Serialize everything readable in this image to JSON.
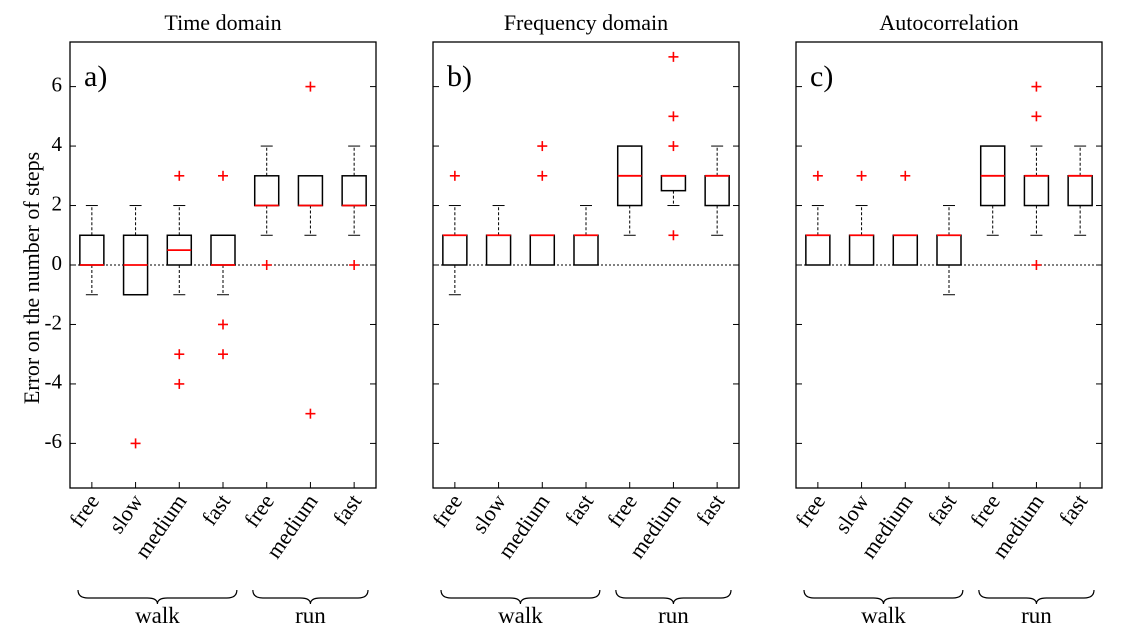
{
  "ylabel": "Error on the number of steps",
  "yticks": [
    -6,
    -4,
    -2,
    0,
    2,
    4,
    6
  ],
  "ylim": [
    -7.5,
    7.5
  ],
  "groups": [
    {
      "label": "walk",
      "categories": [
        0,
        1,
        2,
        3
      ]
    },
    {
      "label": "run",
      "categories": [
        4,
        5,
        6
      ]
    }
  ],
  "colors": {
    "median": "#ff0000",
    "outlier": "#ff0000",
    "box": "#000000",
    "zero_line": "#000000"
  },
  "chart_data": [
    {
      "type": "box",
      "title": "Time domain",
      "panel_label": "a)",
      "categories": [
        "free",
        "slow",
        "medium",
        "fast",
        "free",
        "medium",
        "fast"
      ],
      "boxes": [
        {
          "q1": 0,
          "median": 0,
          "q3": 1,
          "whisker_low": -1,
          "whisker_high": 2,
          "outliers": []
        },
        {
          "q1": -1,
          "median": 0,
          "q3": 1,
          "whisker_low": -1,
          "whisker_high": 2,
          "outliers": [
            -6
          ]
        },
        {
          "q1": 0,
          "median": 0.5,
          "q3": 1,
          "whisker_low": -1,
          "whisker_high": 2,
          "outliers": [
            3,
            -3,
            -4
          ]
        },
        {
          "q1": 0,
          "median": 0,
          "q3": 1,
          "whisker_low": -1,
          "whisker_high": 1,
          "outliers": [
            3,
            -2,
            -3
          ]
        },
        {
          "q1": 2,
          "median": 2,
          "q3": 3,
          "whisker_low": 1,
          "whisker_high": 4,
          "outliers": [
            0
          ]
        },
        {
          "q1": 2,
          "median": 2,
          "q3": 3,
          "whisker_low": 1,
          "whisker_high": 3,
          "outliers": [
            6,
            -5
          ]
        },
        {
          "q1": 2,
          "median": 2,
          "q3": 3,
          "whisker_low": 1,
          "whisker_high": 4,
          "outliers": [
            0
          ]
        }
      ]
    },
    {
      "type": "box",
      "title": "Frequency domain",
      "panel_label": "b)",
      "categories": [
        "free",
        "slow",
        "medium",
        "fast",
        "free",
        "medium",
        "fast"
      ],
      "boxes": [
        {
          "q1": 0,
          "median": 1,
          "q3": 1,
          "whisker_low": -1,
          "whisker_high": 2,
          "outliers": [
            3
          ]
        },
        {
          "q1": 0,
          "median": 1,
          "q3": 1,
          "whisker_low": 0,
          "whisker_high": 2,
          "outliers": []
        },
        {
          "q1": 0,
          "median": 1,
          "q3": 1,
          "whisker_low": 0,
          "whisker_high": 1,
          "outliers": [
            4,
            3
          ]
        },
        {
          "q1": 0,
          "median": 1,
          "q3": 1,
          "whisker_low": 0,
          "whisker_high": 2,
          "outliers": []
        },
        {
          "q1": 2,
          "median": 3,
          "q3": 4,
          "whisker_low": 1,
          "whisker_high": 4,
          "outliers": []
        },
        {
          "q1": 2.5,
          "median": 3,
          "q3": 3,
          "whisker_low": 2,
          "whisker_high": 3,
          "outliers": [
            7,
            5,
            4,
            1
          ]
        },
        {
          "q1": 2,
          "median": 3,
          "q3": 3,
          "whisker_low": 1,
          "whisker_high": 4,
          "outliers": []
        }
      ]
    },
    {
      "type": "box",
      "title": "Autocorrelation",
      "panel_label": "c)",
      "categories": [
        "free",
        "slow",
        "medium",
        "fast",
        "free",
        "medium",
        "fast"
      ],
      "boxes": [
        {
          "q1": 0,
          "median": 1,
          "q3": 1,
          "whisker_low": 0,
          "whisker_high": 2,
          "outliers": [
            3
          ]
        },
        {
          "q1": 0,
          "median": 1,
          "q3": 1,
          "whisker_low": 0,
          "whisker_high": 2,
          "outliers": [
            3
          ]
        },
        {
          "q1": 0,
          "median": 1,
          "q3": 1,
          "whisker_low": 0,
          "whisker_high": 1,
          "outliers": [
            3
          ]
        },
        {
          "q1": 0,
          "median": 1,
          "q3": 1,
          "whisker_low": -1,
          "whisker_high": 2,
          "outliers": []
        },
        {
          "q1": 2,
          "median": 3,
          "q3": 4,
          "whisker_low": 1,
          "whisker_high": 4,
          "outliers": []
        },
        {
          "q1": 2,
          "median": 3,
          "q3": 3,
          "whisker_low": 1,
          "whisker_high": 4,
          "outliers": [
            6,
            5,
            0
          ]
        },
        {
          "q1": 2,
          "median": 3,
          "q3": 3,
          "whisker_low": 1,
          "whisker_high": 4,
          "outliers": []
        }
      ]
    }
  ]
}
